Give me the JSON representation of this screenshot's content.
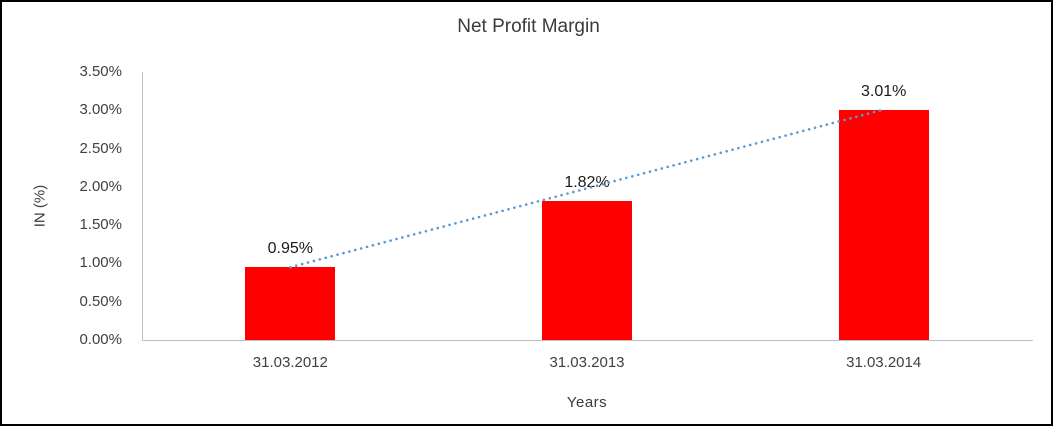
{
  "chart_data": {
    "type": "bar",
    "title": "Net Profit Margin",
    "xlabel": "Years",
    "ylabel": "IN (%)",
    "categories": [
      "31.03.2012",
      "31.03.2013",
      "31.03.2014"
    ],
    "values": [
      0.95,
      1.82,
      3.01
    ],
    "data_labels": [
      "0.95%",
      "1.82%",
      "3.01%"
    ],
    "ylim": [
      0,
      3.5
    ],
    "ytick_step": 0.5,
    "ytick_labels": [
      "0.00%",
      "0.50%",
      "1.00%",
      "1.50%",
      "2.00%",
      "2.50%",
      "3.00%",
      "3.50%"
    ],
    "bar_color": "#fe0000",
    "axis_color": "#bfbfbf",
    "grid": false,
    "legend": "none",
    "trendline": {
      "style": "dotted",
      "color": "#5b9bd5",
      "from_value": 0.95,
      "to_value": 3.01
    }
  }
}
